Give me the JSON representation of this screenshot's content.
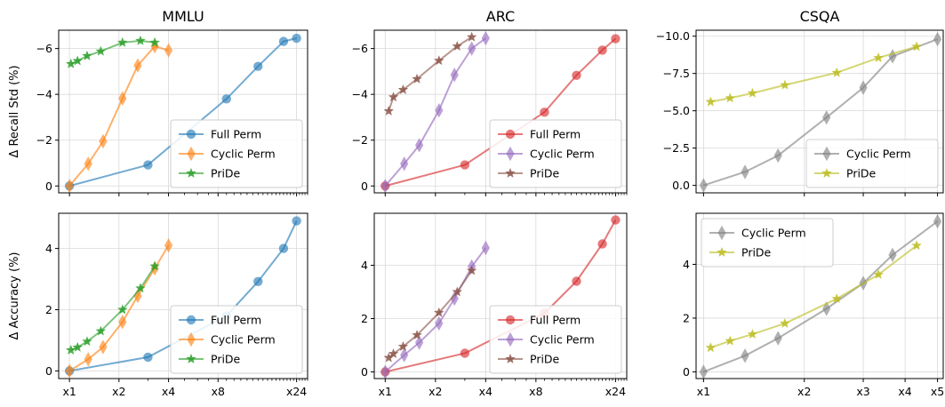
{
  "colors": {
    "full_perm": "#1f77b4",
    "cyclic_perm": "#ff7f0e",
    "pride": "#2ca02c",
    "arc_full_perm": "#d62728",
    "arc_cyclic_perm": "#9467bd",
    "arc_pride": "#8c564b",
    "csqa_cyclic_perm": "#7f7f7f",
    "csqa_pride": "#bcbd22"
  },
  "chart_data": [
    {
      "type": "line",
      "panel": "mmlu-recall",
      "title": "MMLU",
      "ylabel": "Δ Recall Std (%)",
      "xscale": "log",
      "xlim": [
        0.86,
        28
      ],
      "ylim": [
        0.3,
        -6.8
      ],
      "y_inverted": true,
      "yticks": [
        0,
        -2,
        -4,
        -6
      ],
      "ytick_labels": [
        "0",
        "−2",
        "−4",
        "−6"
      ],
      "xticks": [],
      "grid": true,
      "legend": "lower-right",
      "series": [
        {
          "name": "Full Perm",
          "color": "full_perm",
          "marker": "circle",
          "x": [
            1,
            3,
            9,
            14,
            20,
            24
          ],
          "y": [
            0,
            -0.92,
            -3.8,
            -5.22,
            -6.31,
            -6.45
          ]
        },
        {
          "name": "Cyclic Perm",
          "color": "cyclic_perm",
          "marker": "diamond",
          "x": [
            1,
            1.3,
            1.6,
            2.1,
            2.6,
            3.3,
            4
          ],
          "y": [
            0,
            -0.97,
            -1.95,
            -3.82,
            -5.26,
            -6.1,
            -5.92
          ]
        },
        {
          "name": "PriDe",
          "color": "pride",
          "marker": "star",
          "x": [
            1.02,
            1.12,
            1.28,
            1.55,
            2.1,
            2.7,
            3.3
          ],
          "y": [
            -5.33,
            -5.46,
            -5.68,
            -5.88,
            -6.26,
            -6.34,
            -6.26
          ]
        }
      ]
    },
    {
      "type": "line",
      "panel": "arc-recall",
      "title": "ARC",
      "xscale": "log",
      "xlim": [
        0.86,
        28
      ],
      "ylim": [
        0.3,
        -6.8
      ],
      "y_inverted": true,
      "yticks": [
        0,
        -2,
        -4,
        -6
      ],
      "ytick_labels": [
        "0",
        "−2",
        "−4",
        "−6"
      ],
      "xticks": [],
      "grid": true,
      "legend": "lower-right",
      "series": [
        {
          "name": "Full Perm",
          "color": "arc_full_perm",
          "marker": "circle",
          "x": [
            1,
            3,
            9,
            14,
            20,
            24
          ],
          "y": [
            0,
            -0.92,
            -3.22,
            -4.83,
            -5.93,
            -6.43
          ]
        },
        {
          "name": "Cyclic Perm",
          "color": "arc_cyclic_perm",
          "marker": "diamond",
          "x": [
            1,
            1.3,
            1.6,
            2.1,
            2.6,
            3.3,
            4
          ],
          "y": [
            0,
            -0.97,
            -1.78,
            -3.3,
            -4.85,
            -6.0,
            -6.45
          ]
        },
        {
          "name": "PriDe",
          "color": "arc_pride",
          "marker": "star",
          "x": [
            1.05,
            1.12,
            1.28,
            1.55,
            2.1,
            2.7,
            3.3
          ],
          "y": [
            -3.27,
            -3.88,
            -4.2,
            -4.67,
            -5.47,
            -6.1,
            -6.5
          ]
        }
      ]
    },
    {
      "type": "line",
      "panel": "csqa-recall",
      "title": "CSQA",
      "xscale": "log",
      "xlim": [
        0.95,
        5.2
      ],
      "ylim": [
        0.5,
        -10.4
      ],
      "y_inverted": true,
      "yticks": [
        0,
        -2.5,
        -5,
        -7.5,
        -10
      ],
      "ytick_labels": [
        "0.0",
        "−2.5",
        "−5.0",
        "−7.5",
        "−10.0"
      ],
      "xticks": [],
      "grid": true,
      "legend": "lower-right",
      "series": [
        {
          "name": "Cyclic Perm",
          "color": "csqa_cyclic_perm",
          "marker": "diamond",
          "x": [
            1,
            1.33,
            1.67,
            2.33,
            3,
            3.67,
            5
          ],
          "y": [
            0,
            -0.9,
            -2.0,
            -4.55,
            -6.55,
            -8.65,
            -9.8
          ]
        },
        {
          "name": "PriDe",
          "color": "csqa_pride",
          "marker": "star",
          "x": [
            1.05,
            1.2,
            1.4,
            1.75,
            2.5,
            3.33,
            4.33
          ],
          "y": [
            -5.6,
            -5.85,
            -6.18,
            -6.72,
            -7.55,
            -8.55,
            -9.3
          ]
        }
      ]
    },
    {
      "type": "line",
      "panel": "mmlu-accuracy",
      "ylabel": "Δ Accuracy (%)",
      "xscale": "log",
      "xlim": [
        0.86,
        28
      ],
      "ylim": [
        -0.25,
        5.15
      ],
      "yticks": [
        0,
        2,
        4
      ],
      "ytick_labels": [
        "0",
        "2",
        "4"
      ],
      "xticks": [
        1,
        2,
        4,
        8,
        24
      ],
      "xtick_labels": [
        "x1",
        "x2",
        "x4",
        "x8",
        "x24"
      ],
      "grid": true,
      "legend": "lower-right",
      "series": [
        {
          "name": "Full Perm",
          "color": "full_perm",
          "marker": "circle",
          "x": [
            1,
            3,
            9,
            14,
            20,
            24
          ],
          "y": [
            0,
            0.45,
            1.8,
            2.92,
            4.0,
            4.9
          ]
        },
        {
          "name": "Cyclic Perm",
          "color": "cyclic_perm",
          "marker": "diamond",
          "x": [
            1,
            1.3,
            1.6,
            2.1,
            2.6,
            3.3,
            4
          ],
          "y": [
            0,
            0.38,
            0.78,
            1.6,
            2.45,
            3.35,
            4.1
          ]
        },
        {
          "name": "PriDe",
          "color": "pride",
          "marker": "star",
          "x": [
            1.02,
            1.12,
            1.28,
            1.55,
            2.1,
            2.7,
            3.3
          ],
          "y": [
            0.68,
            0.77,
            0.96,
            1.3,
            2.0,
            2.7,
            3.42
          ]
        }
      ]
    },
    {
      "type": "line",
      "panel": "arc-accuracy",
      "xscale": "log",
      "xlim": [
        0.86,
        28
      ],
      "ylim": [
        -0.25,
        5.95
      ],
      "yticks": [
        0,
        2,
        4
      ],
      "ytick_labels": [
        "0",
        "2",
        "4"
      ],
      "xticks": [
        1,
        2,
        4,
        8,
        24
      ],
      "xtick_labels": [
        "x1",
        "x2",
        "x4",
        "x8",
        "x24"
      ],
      "grid": true,
      "legend": "lower-right",
      "series": [
        {
          "name": "Full Perm",
          "color": "arc_full_perm",
          "marker": "circle",
          "x": [
            1,
            3,
            9,
            14,
            20,
            24
          ],
          "y": [
            0,
            0.7,
            2.2,
            3.4,
            4.8,
            5.7
          ]
        },
        {
          "name": "Cyclic Perm",
          "color": "arc_cyclic_perm",
          "marker": "diamond",
          "x": [
            1,
            1.3,
            1.6,
            2.1,
            2.6,
            3.3,
            4
          ],
          "y": [
            0,
            0.63,
            1.1,
            1.82,
            2.75,
            3.95,
            4.65
          ]
        },
        {
          "name": "PriDe",
          "color": "arc_pride",
          "marker": "star",
          "x": [
            1.05,
            1.12,
            1.28,
            1.55,
            2.1,
            2.7,
            3.3
          ],
          "y": [
            0.53,
            0.68,
            0.95,
            1.38,
            2.22,
            3.0,
            3.8
          ]
        }
      ]
    },
    {
      "type": "line",
      "panel": "csqa-accuracy",
      "xscale": "log",
      "xlim": [
        0.95,
        5.2
      ],
      "ylim": [
        -0.25,
        5.9
      ],
      "yticks": [
        0,
        2,
        4
      ],
      "ytick_labels": [
        "0",
        "2",
        "4"
      ],
      "xticks": [
        1,
        2,
        3,
        4,
        5
      ],
      "xtick_labels": [
        "x1",
        "x2",
        "x3",
        "x4",
        "x5"
      ],
      "grid": true,
      "legend": "upper-left",
      "series": [
        {
          "name": "Cyclic Perm",
          "color": "csqa_cyclic_perm",
          "marker": "diamond",
          "x": [
            1,
            1.33,
            1.67,
            2.33,
            3,
            3.67,
            5
          ],
          "y": [
            0,
            0.6,
            1.25,
            2.35,
            3.3,
            4.35,
            5.6
          ]
        },
        {
          "name": "PriDe",
          "color": "csqa_pride",
          "marker": "star",
          "x": [
            1.05,
            1.2,
            1.4,
            1.75,
            2.5,
            3.33,
            4.33
          ],
          "y": [
            0.9,
            1.15,
            1.4,
            1.8,
            2.72,
            3.62,
            4.7
          ]
        }
      ]
    }
  ]
}
